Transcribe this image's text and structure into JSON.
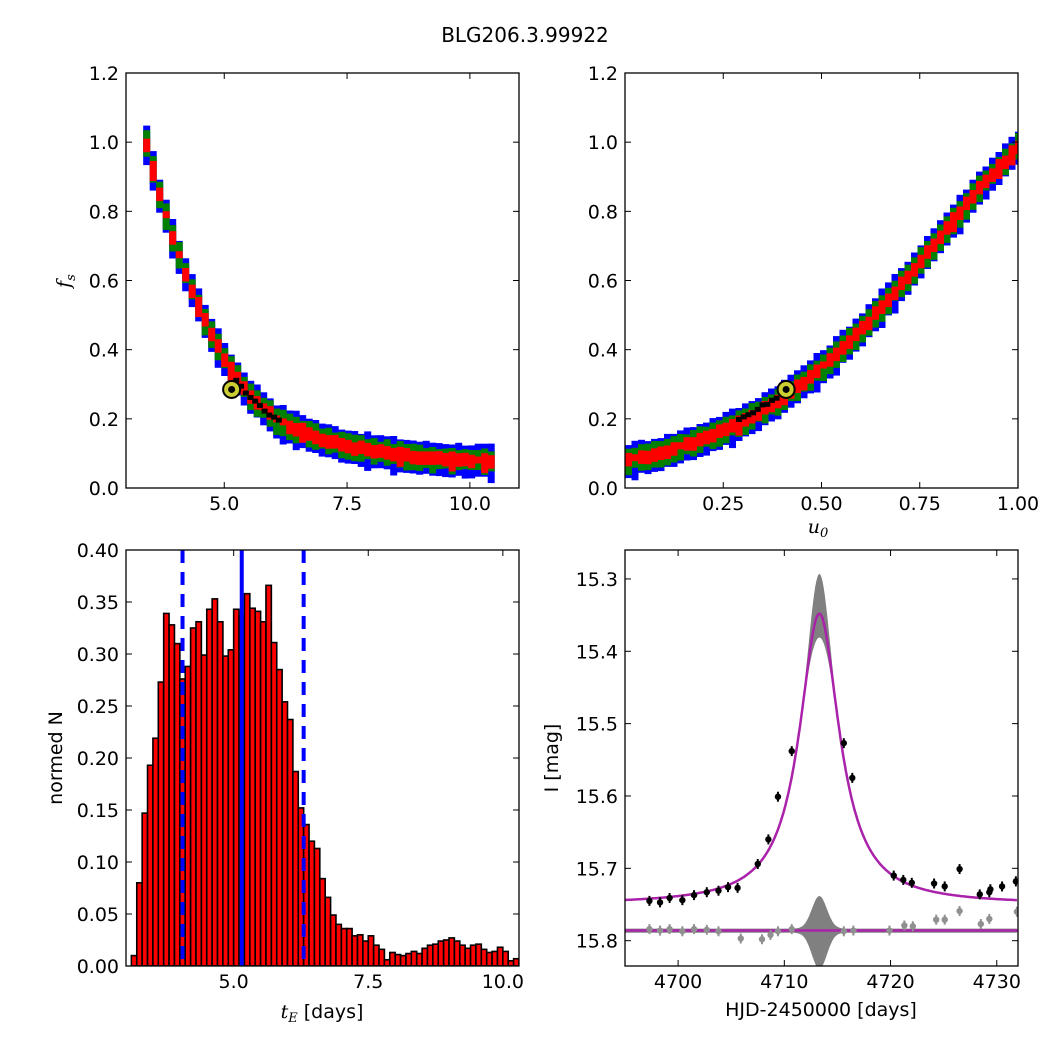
{
  "figure": {
    "title": "BLG206.3.99922"
  },
  "chart_data": [
    {
      "type": "heatmap",
      "title": "",
      "xlabel": "",
      "ylabel": "f_s",
      "xlim": [
        3.0,
        11.0
      ],
      "ylim": [
        0.0,
        1.2
      ],
      "xticks": [
        "5.0",
        "7.5",
        "10.0"
      ],
      "yticks": [
        "0.0",
        "0.2",
        "0.4",
        "0.6",
        "0.8",
        "1.0",
        "1.2"
      ],
      "colors": {
        "outer": "#0000ff",
        "middle": "#008000",
        "inner": "#ff0000",
        "core": "#000000"
      },
      "ridge": [
        [
          3.35,
          1.0
        ],
        [
          3.6,
          0.86
        ],
        [
          3.9,
          0.72
        ],
        [
          4.2,
          0.6
        ],
        [
          4.6,
          0.47
        ],
        [
          5.0,
          0.36
        ],
        [
          5.4,
          0.28
        ],
        [
          6.0,
          0.2
        ],
        [
          7.0,
          0.14
        ],
        [
          8.0,
          0.11
        ],
        [
          9.0,
          0.09
        ],
        [
          10.4,
          0.08
        ]
      ],
      "best_fit": {
        "x": 5.15,
        "y": 0.285
      }
    },
    {
      "type": "heatmap",
      "title": "",
      "xlabel": "u_0",
      "ylabel": "",
      "xlim": [
        0.0,
        1.0
      ],
      "ylim": [
        0.0,
        1.2
      ],
      "xticks": [
        "0.25",
        "0.50",
        "0.75",
        "1.00"
      ],
      "yticks": [
        "0.0",
        "0.2",
        "0.4",
        "0.6",
        "0.8",
        "1.0",
        "1.2"
      ],
      "colors": {
        "outer": "#0000ff",
        "middle": "#008000",
        "inner": "#ff0000",
        "core": "#000000"
      },
      "ridge": [
        [
          0.0,
          0.085
        ],
        [
          0.1,
          0.11
        ],
        [
          0.2,
          0.15
        ],
        [
          0.3,
          0.2
        ],
        [
          0.4,
          0.27
        ],
        [
          0.5,
          0.36
        ],
        [
          0.6,
          0.47
        ],
        [
          0.7,
          0.6
        ],
        [
          0.8,
          0.74
        ],
        [
          0.9,
          0.88
        ],
        [
          1.0,
          1.0
        ]
      ],
      "best_fit": {
        "x": 0.41,
        "y": 0.285
      }
    },
    {
      "type": "bar",
      "title": "",
      "xlabel": "t_E [days]",
      "ylabel": "normed N",
      "xlim": [
        3.0,
        10.3
      ],
      "ylim": [
        0.0,
        0.4
      ],
      "xticks": [
        "5.0",
        "7.5",
        "10.0"
      ],
      "yticks": [
        "0.00",
        "0.05",
        "0.10",
        "0.15",
        "0.20",
        "0.25",
        "0.30",
        "0.35",
        "0.40"
      ],
      "bin_start": 3.1,
      "bin_width": 0.1,
      "values": [
        0.01,
        0.08,
        0.147,
        0.193,
        0.219,
        0.273,
        0.339,
        0.328,
        0.31,
        0.276,
        0.288,
        0.325,
        0.331,
        0.299,
        0.343,
        0.353,
        0.331,
        0.298,
        0.304,
        0.343,
        0.337,
        0.358,
        0.344,
        0.341,
        0.331,
        0.366,
        0.311,
        0.285,
        0.254,
        0.237,
        0.187,
        0.152,
        0.136,
        0.12,
        0.113,
        0.084,
        0.066,
        0.049,
        0.04,
        0.036,
        0.036,
        0.029,
        0.03,
        0.024,
        0.029,
        0.02,
        0.016,
        0.006,
        0.013,
        0.011,
        0.01,
        0.012,
        0.014,
        0.012,
        0.017,
        0.02,
        0.021,
        0.024,
        0.025,
        0.027,
        0.024,
        0.02,
        0.017,
        0.02,
        0.021,
        0.016,
        0.013,
        0.014,
        0.018,
        0.014,
        0.005,
        0.007,
        0.003
      ],
      "bar_color": "#ff0000",
      "median": 5.15,
      "bounds": [
        4.05,
        6.3
      ],
      "line_color": "#0000ff"
    },
    {
      "type": "line",
      "title": "",
      "xlabel": "HJD-2450000 [days]",
      "ylabel": "I [mag]",
      "xlim": [
        4695.0,
        4732.0
      ],
      "ylim": [
        15.835,
        15.26
      ],
      "xticks": [
        "4700",
        "4710",
        "4720",
        "4730"
      ],
      "yticks": [
        "15.3",
        "15.4",
        "15.5",
        "15.6",
        "15.7",
        "15.8"
      ],
      "model": {
        "t0": 4713.3,
        "peak_mag": 15.348,
        "base_mag": 15.75,
        "tau": 2.3
      },
      "model_color": "#aa22aa",
      "band_color": "#808080",
      "data_points": [
        {
          "x": 4697.3,
          "y": 15.745,
          "err": 0.004
        },
        {
          "x": 4698.3,
          "y": 15.747,
          "err": 0.004
        },
        {
          "x": 4699.2,
          "y": 15.741,
          "err": 0.004
        },
        {
          "x": 4700.4,
          "y": 15.744,
          "err": 0.004
        },
        {
          "x": 4701.5,
          "y": 15.737,
          "err": 0.004
        },
        {
          "x": 4702.7,
          "y": 15.733,
          "err": 0.005
        },
        {
          "x": 4703.8,
          "y": 15.731,
          "err": 0.005
        },
        {
          "x": 4704.7,
          "y": 15.726,
          "err": 0.005
        },
        {
          "x": 4705.6,
          "y": 15.727,
          "err": 0.005
        },
        {
          "x": 4707.5,
          "y": 15.694,
          "err": 0.004
        },
        {
          "x": 4708.5,
          "y": 15.66,
          "err": 0.004
        },
        {
          "x": 4709.4,
          "y": 15.601,
          "err": 0.004
        },
        {
          "x": 4710.7,
          "y": 15.538,
          "err": 0.004
        },
        {
          "x": 4715.6,
          "y": 15.527,
          "err": 0.005
        },
        {
          "x": 4716.4,
          "y": 15.575,
          "err": 0.006
        },
        {
          "x": 4720.3,
          "y": 15.71,
          "err": 0.005
        },
        {
          "x": 4721.2,
          "y": 15.716,
          "err": 0.005
        },
        {
          "x": 4722.0,
          "y": 15.72,
          "err": 0.005
        },
        {
          "x": 4724.1,
          "y": 15.721,
          "err": 0.006
        },
        {
          "x": 4725.1,
          "y": 15.725,
          "err": 0.005
        },
        {
          "x": 4726.5,
          "y": 15.701,
          "err": 0.006
        },
        {
          "x": 4728.4,
          "y": 15.736,
          "err": 0.006
        },
        {
          "x": 4729.3,
          "y": 15.733,
          "err": 0.007
        },
        {
          "x": 4729.4,
          "y": 15.729,
          "err": 0.007
        },
        {
          "x": 4730.5,
          "y": 15.725,
          "err": 0.006
        },
        {
          "x": 4731.8,
          "y": 15.718,
          "err": 0.007
        }
      ],
      "residual_points": [
        {
          "x": 4697.3,
          "y": 15.784
        },
        {
          "x": 4698.3,
          "y": 15.786
        },
        {
          "x": 4699.2,
          "y": 15.784
        },
        {
          "x": 4700.4,
          "y": 15.787
        },
        {
          "x": 4701.5,
          "y": 15.784
        },
        {
          "x": 4702.7,
          "y": 15.785
        },
        {
          "x": 4703.8,
          "y": 15.787
        },
        {
          "x": 4705.9,
          "y": 15.797
        },
        {
          "x": 4707.9,
          "y": 15.798
        },
        {
          "x": 4708.7,
          "y": 15.792
        },
        {
          "x": 4709.4,
          "y": 15.787
        },
        {
          "x": 4710.7,
          "y": 15.784
        },
        {
          "x": 4715.6,
          "y": 15.787
        },
        {
          "x": 4716.5,
          "y": 15.786
        },
        {
          "x": 4719.9,
          "y": 15.786
        },
        {
          "x": 4721.3,
          "y": 15.779
        },
        {
          "x": 4722.1,
          "y": 15.78
        },
        {
          "x": 4724.3,
          "y": 15.771
        },
        {
          "x": 4725.1,
          "y": 15.771
        },
        {
          "x": 4726.5,
          "y": 15.759
        },
        {
          "x": 4728.5,
          "y": 15.777
        },
        {
          "x": 4729.3,
          "y": 15.77
        },
        {
          "x": 4731.9,
          "y": 15.76
        }
      ]
    }
  ]
}
